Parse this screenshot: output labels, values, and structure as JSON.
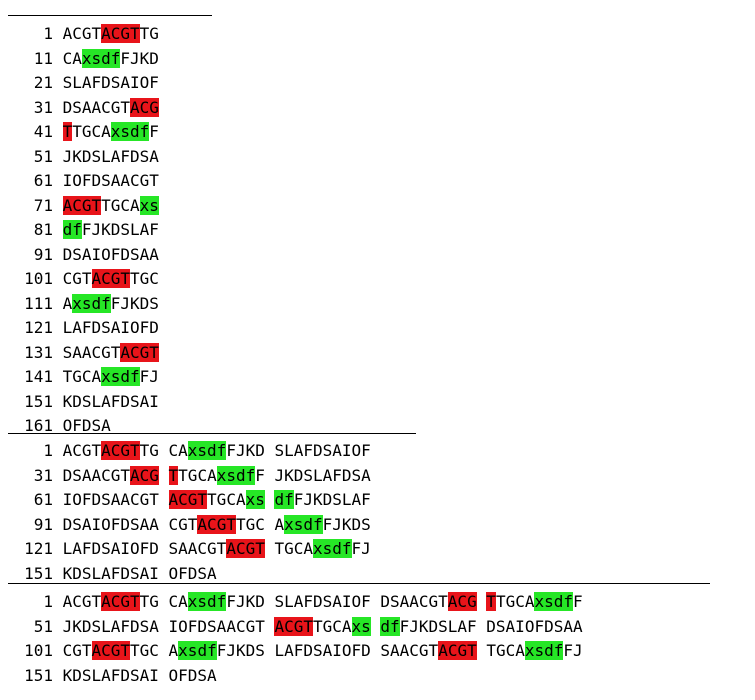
{
  "colors": {
    "marker_red": "#e8141a",
    "marker_green": "#26e626"
  },
  "blocks": [
    {
      "rows": [
        {
          "num": "1",
          "chunks": [
            [
              [
                "ACGT",
                ""
              ],
              [
                "ACGT",
                "red"
              ],
              [
                "TG",
                ""
              ]
            ]
          ]
        },
        {
          "num": "11",
          "chunks": [
            [
              [
                "CA",
                ""
              ],
              [
                "xsdf",
                "green"
              ],
              [
                "FJKD",
                ""
              ]
            ]
          ]
        },
        {
          "num": "21",
          "chunks": [
            [
              [
                "SLAFDSAIOF",
                ""
              ]
            ]
          ]
        },
        {
          "num": "31",
          "chunks": [
            [
              [
                "DSAACGT",
                ""
              ],
              [
                "ACG",
                "red"
              ]
            ]
          ]
        },
        {
          "num": "41",
          "chunks": [
            [
              [
                "T",
                "red"
              ],
              [
                "TGCA",
                ""
              ],
              [
                "xsdf",
                "green"
              ],
              [
                "F",
                ""
              ]
            ]
          ]
        },
        {
          "num": "51",
          "chunks": [
            [
              [
                "JKDSLAFDSA",
                ""
              ]
            ]
          ]
        },
        {
          "num": "61",
          "chunks": [
            [
              [
                "IOFDSAACGT",
                ""
              ]
            ]
          ]
        },
        {
          "num": "71",
          "chunks": [
            [
              [
                "ACGT",
                "red"
              ],
              [
                "TGCA",
                ""
              ],
              [
                "xs",
                "green"
              ]
            ]
          ]
        },
        {
          "num": "81",
          "chunks": [
            [
              [
                "df",
                "green"
              ],
              [
                "FJKDSLAF",
                ""
              ]
            ]
          ]
        },
        {
          "num": "91",
          "chunks": [
            [
              [
                "DSAIOFDSAA",
                ""
              ]
            ]
          ]
        },
        {
          "num": "101",
          "chunks": [
            [
              [
                "CGT",
                ""
              ],
              [
                "ACGT",
                "red"
              ],
              [
                "TGC",
                ""
              ]
            ]
          ]
        },
        {
          "num": "111",
          "chunks": [
            [
              [
                "A",
                ""
              ],
              [
                "xsdf",
                "green"
              ],
              [
                "FJKDS",
                ""
              ]
            ]
          ]
        },
        {
          "num": "121",
          "chunks": [
            [
              [
                "LAFDSAIOFD",
                ""
              ]
            ]
          ]
        },
        {
          "num": "131",
          "chunks": [
            [
              [
                "SAACGT",
                ""
              ],
              [
                "ACGT",
                "red"
              ]
            ]
          ]
        },
        {
          "num": "141",
          "chunks": [
            [
              [
                "TGCA",
                ""
              ],
              [
                "xsdf",
                "green"
              ],
              [
                "FJ",
                ""
              ]
            ]
          ]
        },
        {
          "num": "151",
          "chunks": [
            [
              [
                "KDSLAFDSAI",
                ""
              ]
            ]
          ]
        },
        {
          "num": "161",
          "chunks": [
            [
              [
                "OFDSA",
                ""
              ]
            ]
          ]
        }
      ]
    },
    {
      "rows": [
        {
          "num": "1",
          "chunks": [
            [
              [
                "ACGT",
                ""
              ],
              [
                "ACGT",
                "red"
              ],
              [
                "TG",
                ""
              ]
            ],
            [
              [
                "CA",
                ""
              ],
              [
                "xsdf",
                "green"
              ],
              [
                "FJKD",
                ""
              ]
            ],
            [
              [
                "SLAFDSAIOF",
                ""
              ]
            ]
          ]
        },
        {
          "num": "31",
          "chunks": [
            [
              [
                "DSAACGT",
                ""
              ],
              [
                "ACG",
                "red"
              ]
            ],
            [
              [
                "T",
                "red"
              ],
              [
                "TGCA",
                ""
              ],
              [
                "xsdf",
                "green"
              ],
              [
                "F",
                ""
              ]
            ],
            [
              [
                "JKDSLAFDSA",
                ""
              ]
            ]
          ]
        },
        {
          "num": "61",
          "chunks": [
            [
              [
                "IOFDSAACGT",
                ""
              ]
            ],
            [
              [
                "ACGT",
                "red"
              ],
              [
                "TGCA",
                ""
              ],
              [
                "xs",
                "green"
              ]
            ],
            [
              [
                "df",
                "green"
              ],
              [
                "FJKDSLAF",
                ""
              ]
            ]
          ]
        },
        {
          "num": "91",
          "chunks": [
            [
              [
                "DSAIOFDSAA",
                ""
              ]
            ],
            [
              [
                "CGT",
                ""
              ],
              [
                "ACGT",
                "red"
              ],
              [
                "TGC",
                ""
              ]
            ],
            [
              [
                "A",
                ""
              ],
              [
                "xsdf",
                "green"
              ],
              [
                "FJKDS",
                ""
              ]
            ]
          ]
        },
        {
          "num": "121",
          "chunks": [
            [
              [
                "LAFDSAIOFD",
                ""
              ]
            ],
            [
              [
                "SAACGT",
                ""
              ],
              [
                "ACGT",
                "red"
              ]
            ],
            [
              [
                "TGCA",
                ""
              ],
              [
                "xsdf",
                "green"
              ],
              [
                "FJ",
                ""
              ]
            ]
          ]
        },
        {
          "num": "151",
          "chunks": [
            [
              [
                "KDSLAFDSAI",
                ""
              ]
            ],
            [
              [
                "OFDSA",
                ""
              ]
            ]
          ]
        }
      ]
    },
    {
      "rows": [
        {
          "num": "1",
          "chunks": [
            [
              [
                "ACGT",
                ""
              ],
              [
                "ACGT",
                "red"
              ],
              [
                "TG",
                ""
              ]
            ],
            [
              [
                "CA",
                ""
              ],
              [
                "xsdf",
                "green"
              ],
              [
                "FJKD",
                ""
              ]
            ],
            [
              [
                "SLAFDSAIOF",
                ""
              ]
            ],
            [
              [
                "DSAACGT",
                ""
              ],
              [
                "ACG",
                "red"
              ]
            ],
            [
              [
                "T",
                "red"
              ],
              [
                "TGCA",
                ""
              ],
              [
                "xsdf",
                "green"
              ],
              [
                "F",
                ""
              ]
            ]
          ]
        },
        {
          "num": "51",
          "chunks": [
            [
              [
                "JKDSLAFDSA",
                ""
              ]
            ],
            [
              [
                "IOFDSAACGT",
                ""
              ]
            ],
            [
              [
                "ACGT",
                "red"
              ],
              [
                "TGCA",
                ""
              ],
              [
                "xs",
                "green"
              ]
            ],
            [
              [
                "df",
                "green"
              ],
              [
                "FJKDSLAF",
                ""
              ]
            ],
            [
              [
                "DSAIOFDSAA",
                ""
              ]
            ]
          ]
        },
        {
          "num": "101",
          "chunks": [
            [
              [
                "CGT",
                ""
              ],
              [
                "ACGT",
                "red"
              ],
              [
                "TGC",
                ""
              ]
            ],
            [
              [
                "A",
                ""
              ],
              [
                "xsdf",
                "green"
              ],
              [
                "FJKDS",
                ""
              ]
            ],
            [
              [
                "LAFDSAIOFD",
                ""
              ]
            ],
            [
              [
                "SAACGT",
                ""
              ],
              [
                "ACGT",
                "red"
              ]
            ],
            [
              [
                "TGCA",
                ""
              ],
              [
                "xsdf",
                "green"
              ],
              [
                "FJ",
                ""
              ]
            ]
          ]
        },
        {
          "num": "151",
          "chunks": [
            [
              [
                "KDSLAFDSAI",
                ""
              ]
            ],
            [
              [
                "OFDSA",
                ""
              ]
            ]
          ]
        }
      ]
    }
  ]
}
